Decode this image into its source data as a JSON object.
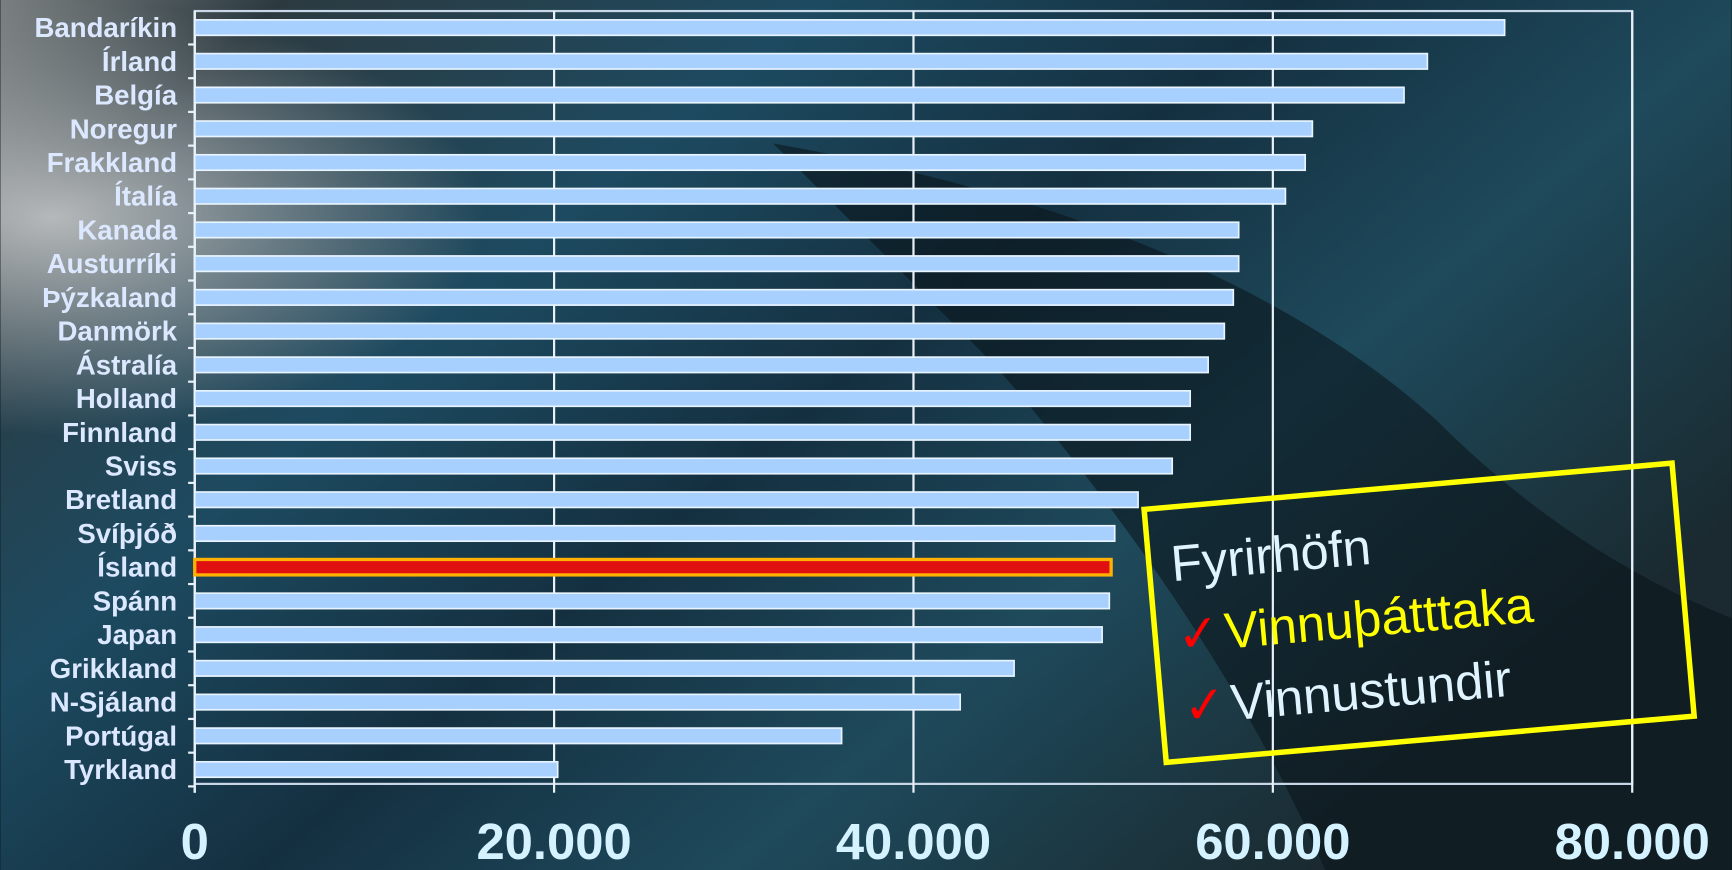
{
  "chart_data": {
    "type": "barh",
    "categories": [
      "Bandaríkin",
      "Írland",
      "Belgía",
      "Noregur",
      "Frakkland",
      "Ítalía",
      "Kanada",
      "Austurríki",
      "Þýzkaland",
      "Danmörk",
      "Ástralía",
      "Holland",
      "Finnland",
      "Sviss",
      "Bretland",
      "Svíþjóð",
      "Ísland",
      "Spánn",
      "Japan",
      "Grikkland",
      "N-Sjáland",
      "Portúgal",
      "Tyrkland"
    ],
    "values": [
      72900,
      68600,
      67300,
      62200,
      61800,
      60700,
      58100,
      58100,
      57800,
      57300,
      56400,
      55400,
      55400,
      54400,
      52500,
      51200,
      51000,
      50900,
      50500,
      45600,
      42600,
      36000,
      20200
    ],
    "colors": [
      "#a8d0ff",
      "#a8d0ff",
      "#a8d0ff",
      "#a8d0ff",
      "#a8d0ff",
      "#a8d0ff",
      "#a8d0ff",
      "#a8d0ff",
      "#a8d0ff",
      "#a8d0ff",
      "#a8d0ff",
      "#a8d0ff",
      "#a8d0ff",
      "#a8d0ff",
      "#a8d0ff",
      "#a8d0ff",
      "#e01010",
      "#a8d0ff",
      "#a8d0ff",
      "#a8d0ff",
      "#a8d0ff",
      "#a8d0ff",
      "#a8d0ff"
    ],
    "xlim": [
      0,
      80000
    ],
    "xticks": [
      0,
      {
        "value": 20000,
        "label": "20.000"
      },
      {
        "value": 40000,
        "label": "40.000"
      },
      {
        "value": 60000,
        "label": "60.000"
      },
      {
        "value": 80000,
        "label": "80.000"
      }
    ],
    "grid": true,
    "annotation": {
      "title": "Fyrirhöfn",
      "items": [
        {
          "check": "✓",
          "text": "Vinnuþátttaka"
        },
        {
          "check": "✓",
          "text": "Vinnustundir"
        }
      ]
    }
  }
}
